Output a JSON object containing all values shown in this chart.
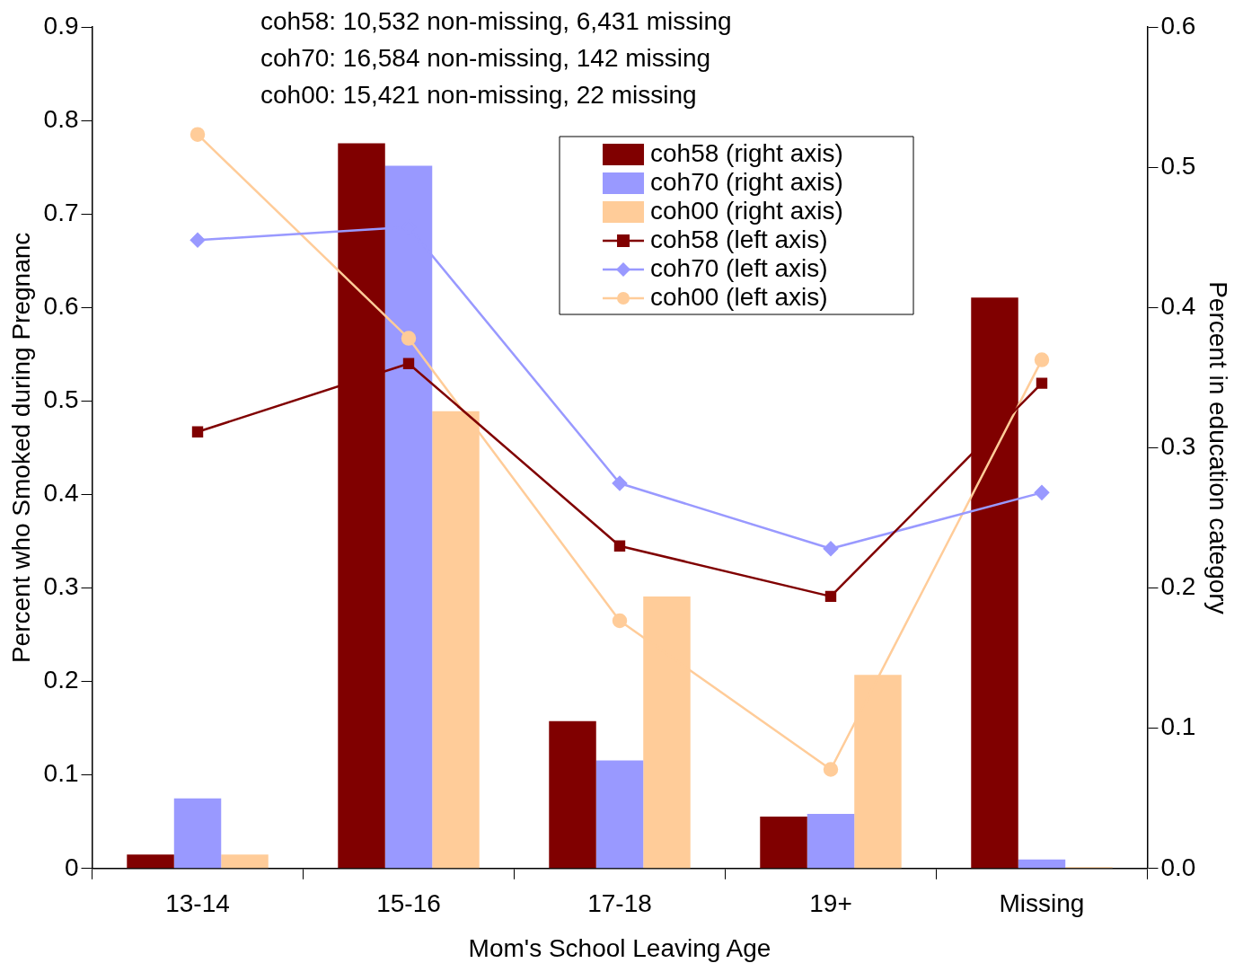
{
  "chart_data": {
    "type": "bar",
    "xlabel": "Mom's School Leaving Age",
    "ylabel": "Percent who Smoked during Pregnanc",
    "y2label": "Percent in education category",
    "annotations": [
      "coh58: 10,532 non-missing, 6,431 missing",
      "coh70: 16,584 non-missing, 142 missing",
      "coh00: 15,421 non-missing, 22 missing"
    ],
    "categories": [
      "13-14",
      "15-16",
      "17-18",
      "19+",
      "Missing"
    ],
    "series": [
      {
        "name": "coh58 (right axis)",
        "axis": "y2",
        "color": "#800000",
        "values": [
          0.01,
          0.517,
          0.105,
          0.037,
          0.407
        ]
      },
      {
        "name": "coh70 (right axis)",
        "axis": "y2",
        "color": "#9999ff",
        "values": [
          0.05,
          0.501,
          0.077,
          0.039,
          0.0065
        ]
      },
      {
        "name": "coh00 (right axis)",
        "axis": "y2",
        "color": "#ffcc99",
        "values": [
          0.01,
          0.326,
          0.194,
          0.138,
          0.001
        ]
      },
      {
        "name": "coh58 (left axis)",
        "type": "line",
        "axis": "y",
        "marker": "square",
        "color": "#800000",
        "values": [
          0.467,
          0.54,
          0.345,
          0.291,
          0.519
        ]
      },
      {
        "name": "coh70 (left axis)",
        "type": "line",
        "axis": "y",
        "marker": "diamond",
        "color": "#9999ff",
        "values": [
          0.672,
          0.686,
          0.412,
          0.342,
          0.402
        ]
      },
      {
        "name": "coh00 (left axis)",
        "type": "line",
        "axis": "y",
        "marker": "circle",
        "color": "#ffcc99",
        "values": [
          0.785,
          0.567,
          0.265,
          0.106,
          0.544
        ]
      }
    ],
    "ylim": [
      0,
      0.9
    ],
    "yticks": [
      0,
      0.1,
      0.2,
      0.3,
      0.4,
      0.5,
      0.6,
      0.7,
      0.8,
      0.9
    ],
    "y2lim": [
      0,
      0.6
    ],
    "y2ticks": [
      {
        "value": 0,
        "label": "0.0"
      },
      0.1,
      0.2,
      0.3,
      0.4,
      0.5,
      0.6
    ],
    "grid": false,
    "legend": "top right"
  }
}
